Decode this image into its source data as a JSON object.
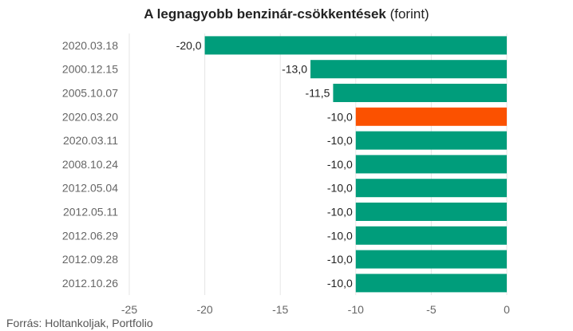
{
  "chart_data": {
    "type": "bar",
    "orientation": "horizontal",
    "title_main": "A legnagyobb benzinár-csökkentések",
    "title_unit": "(forint)",
    "categories": [
      "2020.03.18",
      "2000.12.15",
      "2005.10.07",
      "2020.03.20",
      "2020.03.11",
      "2008.10.24",
      "2012.05.04",
      "2012.05.11",
      "2012.06.29",
      "2012.09.28",
      "2012.10.26"
    ],
    "values": [
      -20.0,
      -13.0,
      -11.5,
      -10.0,
      -10.0,
      -10.0,
      -10.0,
      -10.0,
      -10.0,
      -10.0,
      -10.0
    ],
    "value_labels": [
      "-20,0",
      "-13,0",
      "-11,5",
      "-10,0",
      "-10,0",
      "-10,0",
      "-10,0",
      "-10,0",
      "-10,0",
      "-10,0",
      "-10,0"
    ],
    "highlight_index": 3,
    "colors": {
      "default": "#009d7b",
      "highlight": "#fb5100"
    },
    "xlim": [
      -25,
      0
    ],
    "xticks": [
      -25,
      -20,
      -15,
      -10,
      -5,
      0
    ],
    "xtick_labels": [
      "-25",
      "-20",
      "-15",
      "-10",
      "-5",
      "0"
    ],
    "grid": true,
    "xlabel": "",
    "ylabel": ""
  },
  "source": "Forrás: Holtankoljak, Portfolio"
}
